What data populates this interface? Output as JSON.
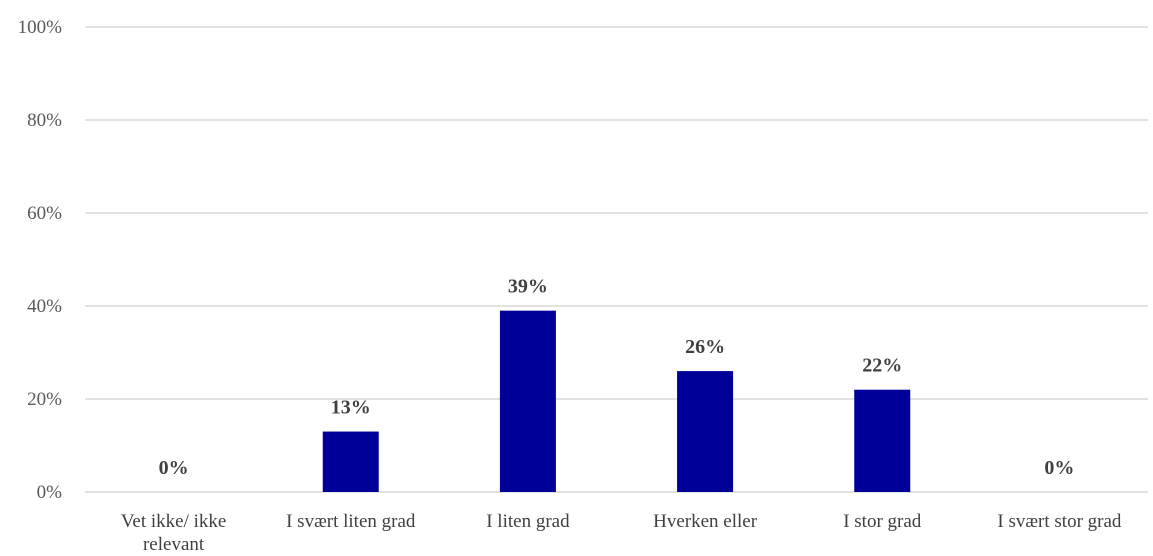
{
  "chart_data": {
    "type": "bar",
    "categories": [
      [
        "Vet ikke/ ikke",
        "relevant"
      ],
      [
        "I svært liten grad"
      ],
      [
        "I liten grad"
      ],
      [
        "Hverken eller"
      ],
      [
        "I stor grad"
      ],
      [
        "I svært stor grad"
      ]
    ],
    "values": [
      0,
      13,
      39,
      26,
      22,
      0
    ],
    "data_labels": [
      "0%",
      "13%",
      "39%",
      "26%",
      "22%",
      "0%"
    ],
    "ylim": [
      0,
      100
    ],
    "yticks": [
      0,
      20,
      40,
      60,
      80,
      100
    ],
    "ytick_labels": [
      "0%",
      "20%",
      "40%",
      "60%",
      "80%",
      "100%"
    ],
    "bar_color": "#000099",
    "grid": true
  }
}
